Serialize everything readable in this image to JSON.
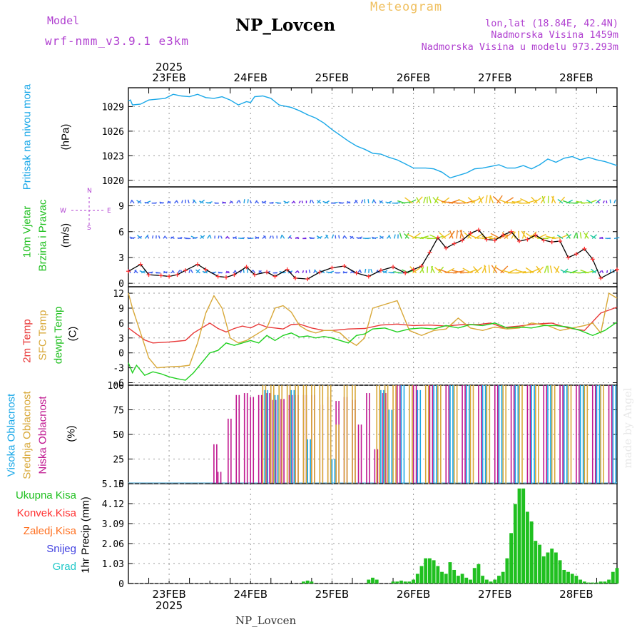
{
  "header": {
    "title": "NP_Lovcen",
    "subtitle": "Meteogram",
    "model_label": "Model",
    "model_name": "wrf-nmm_v3.9.1 e3km",
    "lonlat": "lon,lat (18.84E, 42.4N)",
    "altitude": "Nadmorska Visina 1459m",
    "model_altitude": "Nadmorska Visina u modelu 973.293m",
    "footer": "NP_Lovcen",
    "watermark": "made by Angel"
  },
  "colors": {
    "pressure": "#1aa8e8",
    "wind": "#ff3030",
    "t2m": "#e83838",
    "sfc": "#d8a838",
    "dew": "#20d020",
    "high_cloud": "#1aa8e8",
    "mid_cloud": "#d8a838",
    "low_cloud": "#c01890",
    "total": "#20c020",
    "convective": "#ff3030",
    "frozen": "#ff7020",
    "snow": "#4040e0",
    "grad": "#20c8c8",
    "label_purple": "#b040d0"
  },
  "chart_data": [
    {
      "type": "line",
      "panel": "pressure",
      "title": "Pritisak na nivou mora",
      "ylabel": "(hPa)",
      "yticks": [
        "1020",
        "1023",
        "1026",
        "1029"
      ],
      "ylim": [
        1019.2,
        1031.3
      ],
      "x_days": [
        0,
        0.05,
        0.1,
        0.3,
        0.5,
        0.7,
        0.9,
        1.1,
        1.3,
        1.5,
        1.7,
        1.9,
        2.1,
        2.3,
        2.5,
        2.7,
        2.9,
        3.0,
        3.1,
        3.3,
        3.5,
        3.7,
        3.9,
        4.0,
        4.2,
        4.4,
        4.6,
        4.8,
        5.0,
        5.2,
        5.4,
        5.6,
        5.8,
        6.0,
        6.2,
        6.4,
        6.6,
        6.8,
        7.0,
        7.3,
        7.5,
        7.7,
        7.9,
        8.1,
        8.3,
        8.5,
        8.7,
        8.9,
        9.1,
        9.3,
        9.5,
        9.7,
        9.9,
        10.1,
        10.3,
        10.5,
        10.7,
        10.9,
        11.1,
        11.3,
        11.5,
        11.7,
        12.0
      ],
      "values": [
        1029.7,
        1029.8,
        1029.2,
        1029.3,
        1029.8,
        1029.9,
        1030.0,
        1030.5,
        1030.3,
        1030.2,
        1030.5,
        1030.1,
        1030.0,
        1030.2,
        1029.8,
        1029.2,
        1029.6,
        1029.5,
        1030.2,
        1030.3,
        1030.0,
        1029.2,
        1029.0,
        1028.9,
        1028.5,
        1028.0,
        1027.6,
        1027.0,
        1026.2,
        1025.5,
        1024.8,
        1024.2,
        1023.8,
        1023.3,
        1023.2,
        1022.8,
        1022.5,
        1022.0,
        1021.5,
        1021.5,
        1021.4,
        1021.0,
        1020.3,
        1020.6,
        1020.9,
        1021.4,
        1021.5,
        1021.7,
        1021.9,
        1021.5,
        1021.5,
        1021.8,
        1021.4,
        1021.9,
        1022.6,
        1022.2,
        1022.7,
        1022.9,
        1022.5,
        1022.8,
        1022.5,
        1022.3,
        1021.8
      ]
    },
    {
      "type": "line",
      "panel": "wind",
      "title": "10m Vjetar",
      "title2": "Brzina i Pravac",
      "ylabel": "(m/s)",
      "compass": [
        "N",
        "W",
        "E",
        "S"
      ],
      "yticks": [
        "0",
        "3",
        "6",
        "9"
      ],
      "ylim": [
        -0.4,
        11.2
      ],
      "x_days": [
        0,
        0.3,
        0.5,
        0.8,
        1.0,
        1.2,
        1.4,
        1.7,
        1.9,
        2.2,
        2.4,
        2.6,
        2.9,
        3.1,
        3.4,
        3.6,
        3.9,
        4.1,
        4.4,
        4.7,
        5.0,
        5.3,
        5.6,
        5.9,
        6.2,
        6.5,
        6.8,
        7.0,
        7.2,
        7.4,
        7.6,
        7.8,
        8.0,
        8.2,
        8.4,
        8.6,
        8.8,
        9.0,
        9.2,
        9.4,
        9.6,
        9.8,
        10.0,
        10.2,
        10.4,
        10.6,
        10.8,
        11.0,
        11.2,
        11.4,
        11.6,
        12.0
      ],
      "values": [
        1.4,
        2.2,
        1.0,
        0.9,
        0.8,
        1.0,
        1.5,
        2.2,
        1.6,
        0.8,
        0.7,
        1.0,
        1.9,
        1.0,
        1.3,
        0.8,
        1.6,
        0.6,
        0.5,
        1.3,
        1.8,
        2.0,
        1.2,
        0.8,
        1.5,
        1.9,
        1.2,
        1.6,
        2.0,
        3.6,
        5.3,
        4.1,
        4.6,
        5.0,
        5.8,
        6.2,
        5.1,
        5.0,
        5.6,
        6.0,
        4.9,
        5.1,
        5.6,
        5.0,
        4.8,
        4.9,
        3.0,
        3.4,
        4.0,
        2.8,
        0.6,
        1.6
      ]
    },
    {
      "type": "line",
      "panel": "temperature",
      "title": "2m Temp",
      "title2": "SFC Temp",
      "title3": "dewpt Temp",
      "ylabel": "(C)",
      "yticks": [
        "-6",
        "-3",
        "0",
        "3",
        "6",
        "9",
        "12"
      ],
      "ylim": [
        -6.5,
        13.3
      ],
      "series": [
        {
          "name": "2m Temp",
          "x_days": [
            0,
            0.2,
            0.4,
            0.6,
            0.8,
            1.0,
            1.4,
            1.6,
            1.8,
            2.0,
            2.2,
            2.4,
            2.6,
            2.8,
            3.0,
            3.2,
            3.4,
            3.6,
            3.8,
            4.0,
            4.2,
            4.5,
            4.8,
            5.0,
            5.4,
            5.8,
            6.2,
            6.6,
            7.0,
            7.4,
            7.8,
            8.2,
            8.6,
            8.9,
            9.2,
            9.6,
            10.0,
            10.4,
            10.8,
            11.2,
            11.6,
            12.0
          ],
          "values": [
            5.0,
            3.8,
            2.6,
            2.0,
            2.1,
            2.2,
            2.5,
            4.0,
            5.0,
            6.0,
            4.9,
            4.2,
            4.9,
            5.4,
            5.0,
            5.8,
            5.2,
            5.0,
            4.8,
            5.7,
            5.8,
            5.0,
            4.5,
            4.5,
            4.8,
            4.9,
            5.6,
            5.8,
            5.5,
            5.6,
            5.4,
            5.7,
            5.7,
            6.0,
            5.1,
            5.4,
            5.8,
            6.0,
            5.0,
            4.5,
            8.0,
            9.2
          ]
        },
        {
          "name": "SFC Temp",
          "x_days": [
            0,
            0.1,
            0.3,
            0.5,
            0.7,
            1.0,
            1.3,
            1.5,
            1.7,
            1.9,
            2.1,
            2.3,
            2.5,
            2.7,
            2.9,
            3.2,
            3.4,
            3.6,
            3.8,
            4.0,
            4.2,
            4.4,
            4.6,
            4.8,
            5.0,
            5.2,
            5.4,
            5.6,
            5.8,
            6.0,
            6.2,
            6.6,
            6.9,
            7.2,
            7.5,
            7.8,
            8.1,
            8.4,
            8.7,
            9.0,
            9.3,
            9.6,
            9.9,
            10.3,
            10.6,
            10.9,
            11.2,
            11.4,
            11.6,
            11.8,
            12.0
          ],
          "values": [
            12.0,
            9.0,
            4.0,
            -1.0,
            -3.0,
            -2.8,
            -2.7,
            -2.5,
            2.0,
            8.0,
            11.5,
            9.0,
            3.0,
            2.0,
            2.5,
            4.0,
            5.0,
            9.0,
            9.5,
            8.2,
            5.5,
            4.5,
            4.0,
            4.5,
            4.5,
            4.0,
            2.5,
            1.5,
            3.0,
            9.0,
            9.5,
            10.5,
            4.5,
            3.5,
            4.5,
            4.8,
            7.0,
            5.0,
            4.5,
            5.2,
            4.8,
            5.0,
            6.0,
            5.5,
            4.5,
            5.0,
            5.5,
            6.0,
            4.0,
            12.0,
            11.0
          ]
        },
        {
          "name": "dewpt Temp",
          "x_days": [
            0,
            0.1,
            0.2,
            0.4,
            0.6,
            0.8,
            1.0,
            1.2,
            1.4,
            1.6,
            1.8,
            2.0,
            2.2,
            2.4,
            2.6,
            2.8,
            3.0,
            3.2,
            3.4,
            3.6,
            3.8,
            4.0,
            4.2,
            4.4,
            4.6,
            4.8,
            5.0,
            5.2,
            5.4,
            5.6,
            5.8,
            6.0,
            6.3,
            6.6,
            6.9,
            7.2,
            7.5,
            7.8,
            8.1,
            8.4,
            8.7,
            9.0,
            9.3,
            9.6,
            9.9,
            10.2,
            10.5,
            10.8,
            11.1,
            11.4,
            11.7,
            12.0
          ],
          "values": [
            -2.0,
            -4.0,
            -2.5,
            -4.5,
            -3.8,
            -4.2,
            -4.8,
            -5.2,
            -5.5,
            -4.0,
            -2.0,
            0.0,
            0.5,
            2.0,
            1.5,
            2.0,
            2.5,
            2.0,
            3.5,
            2.5,
            3.5,
            4.0,
            3.2,
            3.4,
            3.0,
            3.3,
            3.0,
            2.5,
            2.0,
            3.5,
            3.8,
            4.8,
            5.0,
            4.2,
            4.8,
            5.0,
            4.8,
            5.5,
            5.0,
            5.7,
            5.5,
            6.0,
            5.0,
            5.2,
            5.0,
            5.5,
            5.5,
            5.2,
            4.5,
            3.5,
            4.5,
            6.2
          ]
        }
      ]
    },
    {
      "type": "bar",
      "panel": "clouds",
      "title": "Visoka Oblacnost",
      "title2": "Srednja Oblacnost",
      "title3": "Niska Oblacnost",
      "ylabel": "(%)",
      "yticks": [
        "0",
        "25",
        "50",
        "75",
        "100"
      ],
      "ylim": [
        0,
        100
      ],
      "series": [
        {
          "name": "Niska Oblacnost",
          "bars": [
            [
              2.1,
              40
            ],
            [
              2.2,
              12
            ],
            [
              2.45,
              66
            ],
            [
              2.65,
              90
            ],
            [
              2.85,
              92
            ],
            [
              3.0,
              88
            ],
            [
              3.2,
              90
            ],
            [
              3.4,
              92
            ],
            [
              3.55,
              85
            ],
            [
              3.75,
              86
            ],
            [
              3.95,
              90
            ],
            [
              4.1,
              90
            ],
            [
              4.3,
              90
            ],
            [
              4.5,
              90
            ],
            [
              4.7,
              80
            ],
            [
              4.9,
              88
            ],
            [
              5.1,
              84
            ],
            [
              5.3,
              88
            ],
            [
              5.5,
              85
            ],
            [
              5.65,
              60
            ],
            [
              5.85,
              92
            ],
            [
              6.05,
              35
            ],
            [
              6.25,
              92
            ],
            [
              6.6,
              100
            ],
            [
              7.0,
              100
            ],
            [
              7.4,
              100
            ],
            [
              7.8,
              100
            ],
            [
              8.2,
              100
            ],
            [
              8.6,
              100
            ],
            [
              9.0,
              100
            ],
            [
              9.4,
              100
            ],
            [
              9.8,
              100
            ],
            [
              10.2,
              100
            ],
            [
              10.6,
              100
            ],
            [
              11.0,
              100
            ],
            [
              11.4,
              100
            ],
            [
              11.8,
              100
            ]
          ]
        },
        {
          "name": "Srednja Oblacnost",
          "bars": [
            [
              3.3,
              100
            ],
            [
              3.5,
              100
            ],
            [
              3.7,
              100
            ],
            [
              3.9,
              100
            ],
            [
              4.1,
              100
            ],
            [
              4.3,
              100
            ],
            [
              4.5,
              100
            ],
            [
              4.7,
              100
            ],
            [
              4.9,
              100
            ],
            [
              5.1,
              60
            ],
            [
              5.3,
              100
            ],
            [
              5.5,
              100
            ],
            [
              6.1,
              100
            ],
            [
              6.3,
              100
            ],
            [
              6.5,
              100
            ],
            [
              6.9,
              100
            ],
            [
              7.3,
              100
            ],
            [
              7.6,
              100
            ],
            [
              8.0,
              100
            ],
            [
              8.4,
              100
            ],
            [
              8.8,
              100
            ],
            [
              9.2,
              100
            ],
            [
              9.6,
              100
            ],
            [
              10.0,
              100
            ],
            [
              10.4,
              100
            ],
            [
              10.8,
              100
            ],
            [
              11.2,
              100
            ],
            [
              11.6,
              100
            ]
          ]
        },
        {
          "name": "Visoka Oblacnost",
          "bars": [
            [
              3.35,
              95
            ],
            [
              3.6,
              90
            ],
            [
              4.0,
              95
            ],
            [
              4.4,
              45
            ],
            [
              5.0,
              25
            ],
            [
              6.2,
              95
            ],
            [
              6.4,
              75
            ],
            [
              6.7,
              100
            ],
            [
              7.1,
              95
            ],
            [
              7.5,
              100
            ],
            [
              7.9,
              100
            ],
            [
              8.3,
              100
            ],
            [
              8.7,
              100
            ],
            [
              9.1,
              100
            ],
            [
              9.5,
              100
            ],
            [
              9.9,
              100
            ],
            [
              10.3,
              100
            ],
            [
              10.7,
              100
            ],
            [
              11.1,
              100
            ],
            [
              11.5,
              100
            ],
            [
              11.9,
              100
            ]
          ]
        }
      ]
    },
    {
      "type": "bar",
      "panel": "precipitation",
      "ylabel": "1hr Precip (mm)",
      "legend": [
        "Ukupna Kisa",
        "Konvek.Kisa",
        "Zaledj.Kisa",
        "Snijeg",
        "Grad"
      ],
      "yticks": [
        "0",
        "1.03",
        "2.06",
        "3.09",
        "4.12",
        "5.15"
      ],
      "ylim": [
        0,
        5.15
      ],
      "x_days": [
        4.3,
        4.4,
        4.5,
        5.9,
        6.0,
        6.1,
        6.5,
        6.6,
        6.7,
        6.8,
        6.9,
        7.0,
        7.1,
        7.2,
        7.3,
        7.4,
        7.5,
        7.6,
        7.7,
        7.8,
        7.9,
        8.0,
        8.1,
        8.2,
        8.3,
        8.4,
        8.5,
        8.6,
        8.7,
        8.8,
        8.9,
        9.0,
        9.1,
        9.2,
        9.3,
        9.4,
        9.5,
        9.6,
        9.7,
        9.8,
        9.9,
        10.0,
        10.1,
        10.2,
        10.3,
        10.4,
        10.5,
        10.6,
        10.7,
        10.8,
        10.9,
        11.0,
        11.1,
        11.2,
        11.3,
        11.4,
        11.5,
        11.6,
        11.7,
        11.8,
        11.9,
        12.0
      ],
      "values": [
        0.1,
        0.15,
        0.1,
        0.2,
        0.3,
        0.2,
        0.1,
        0.1,
        0.15,
        0.1,
        0.1,
        0.2,
        0.5,
        0.9,
        1.3,
        1.3,
        1.2,
        0.9,
        0.6,
        0.5,
        1.1,
        0.7,
        0.4,
        0.5,
        0.3,
        0.2,
        0.8,
        1.0,
        0.4,
        0.2,
        0.1,
        0.2,
        0.4,
        0.6,
        1.3,
        2.6,
        4.1,
        4.9,
        4.9,
        3.7,
        3.2,
        2.2,
        2.0,
        1.4,
        1.6,
        1.8,
        1.6,
        1.2,
        0.7,
        0.6,
        0.5,
        0.4,
        0.2,
        0.1,
        0.05,
        0.05,
        0.05,
        0.1,
        0.1,
        0.2,
        0.6,
        0.8
      ]
    }
  ],
  "x_axis": {
    "days": [
      "23FEB",
      "24FEB",
      "25FEB",
      "26FEB",
      "27FEB",
      "28FEB"
    ],
    "year": "2025"
  }
}
